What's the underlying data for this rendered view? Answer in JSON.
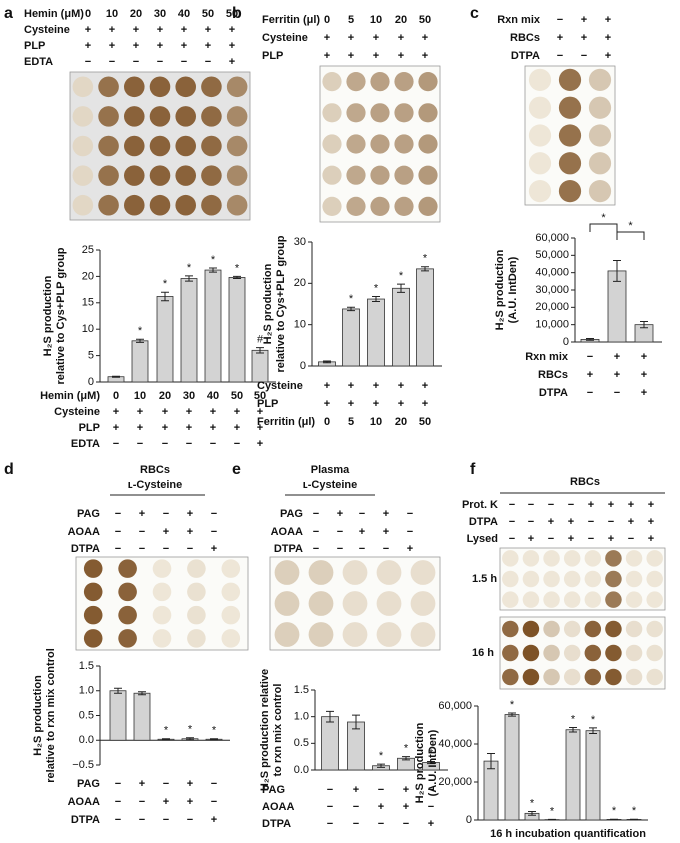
{
  "chart_data": [
    {
      "panel": "a",
      "type": "bar",
      "color": "#d3d3d3",
      "y_label": [
        "H₂S production",
        "relative to Cys+PLP group"
      ],
      "conditions": [
        {
          "label": "Hemin (μM)",
          "values": [
            "0",
            "10",
            "20",
            "30",
            "40",
            "50",
            "50"
          ]
        },
        {
          "label": "Cysteine",
          "values": [
            "+",
            "+",
            "+",
            "+",
            "+",
            "+",
            "+"
          ]
        },
        {
          "label": "PLP",
          "values": [
            "+",
            "+",
            "+",
            "+",
            "+",
            "+",
            "+"
          ]
        },
        {
          "label": "EDTA",
          "values": [
            "−",
            "−",
            "−",
            "−",
            "−",
            "−",
            "+"
          ]
        }
      ],
      "values": [
        1.0,
        7.8,
        16.2,
        19.6,
        21.2,
        19.8,
        6.0
      ],
      "errors": [
        0.1,
        0.3,
        0.8,
        0.5,
        0.4,
        0.2,
        0.5
      ],
      "annotations": [
        null,
        "*",
        "*",
        "*",
        "*",
        "*",
        "#"
      ],
      "ylim": [
        0,
        25
      ],
      "yticks": [
        0,
        5,
        10,
        15,
        20,
        25
      ]
    },
    {
      "panel": "b",
      "type": "bar",
      "color": "#d3d3d3",
      "y_label": [
        "H₂S production",
        "relative to Cys+PLP group"
      ],
      "conditions": [
        {
          "label": "Ferritin (μl)",
          "values": [
            "0",
            "5",
            "10",
            "20",
            "50"
          ]
        },
        {
          "label": "Cysteine",
          "values": [
            "+",
            "+",
            "+",
            "+",
            "+"
          ]
        },
        {
          "label": "PLP",
          "values": [
            "+",
            "+",
            "+",
            "+",
            "+"
          ]
        }
      ],
      "values": [
        1.0,
        13.8,
        16.2,
        18.8,
        23.5
      ],
      "errors": [
        0.2,
        0.4,
        0.6,
        1.0,
        0.5
      ],
      "annotations": [
        null,
        "*",
        "*",
        "*",
        "*"
      ],
      "ylim": [
        0,
        30
      ],
      "yticks": [
        0,
        10,
        20,
        30
      ]
    },
    {
      "panel": "c",
      "type": "bar",
      "color": "#d3d3d3",
      "y_label": [
        "H₂S production",
        "(A.U. IntDen)"
      ],
      "conditions": [
        {
          "label": "Rxn mix",
          "values": [
            "−",
            "+",
            "+"
          ]
        },
        {
          "label": "RBCs",
          "values": [
            "+",
            "+",
            "+"
          ]
        },
        {
          "label": "DTPA",
          "values": [
            "−",
            "−",
            "+"
          ]
        }
      ],
      "values": [
        1500,
        41000,
        10000
      ],
      "errors": [
        500,
        6000,
        1800
      ],
      "significance": [
        "*",
        "*"
      ],
      "ylim": [
        0,
        60000
      ],
      "yticks": [
        0,
        {
          "value": 10000,
          "label": "10,000"
        },
        {
          "value": 20000,
          "label": "20,000"
        },
        {
          "value": 30000,
          "label": "30,000"
        },
        {
          "value": 40000,
          "label": "40,000"
        },
        {
          "value": 50000,
          "label": "50,000"
        },
        {
          "value": 60000,
          "label": "60,000"
        }
      ]
    },
    {
      "panel": "d",
      "type": "bar",
      "color": "#d3d3d3",
      "title": "RBCs",
      "subtitle": "ʟ-Cysteine",
      "y_label": [
        "H₂S production",
        "relative to rxn mix control"
      ],
      "conditions": [
        {
          "label": "PAG",
          "values": [
            "−",
            "+",
            "−",
            "+",
            "−"
          ]
        },
        {
          "label": "AOAA",
          "values": [
            "−",
            "−",
            "+",
            "+",
            "−"
          ]
        },
        {
          "label": "DTPA",
          "values": [
            "−",
            "−",
            "−",
            "−",
            "+"
          ]
        }
      ],
      "values": [
        1.0,
        0.95,
        0.02,
        0.03,
        0.02
      ],
      "errors": [
        0.05,
        0.03,
        0.01,
        0.02,
        0.01
      ],
      "annotations": [
        null,
        null,
        "*",
        "*",
        "*"
      ],
      "ylim": [
        -0.5,
        1.5
      ],
      "yticks": [
        {
          "value": -0.5,
          "label": "−0.5"
        },
        {
          "value": 0,
          "label": "0.0"
        },
        0.5,
        {
          "value": 1,
          "label": "1.0"
        },
        1.5
      ]
    },
    {
      "panel": "e",
      "type": "bar",
      "color": "#d3d3d3",
      "title": "Plasma",
      "subtitle": "ʟ-Cysteine",
      "y_label": [
        "H₂S production relative",
        "to rxn mix control"
      ],
      "conditions": [
        {
          "label": "PAG",
          "values": [
            "−",
            "+",
            "−",
            "+",
            "−"
          ]
        },
        {
          "label": "AOAA",
          "values": [
            "−",
            "−",
            "+",
            "+",
            "−"
          ]
        },
        {
          "label": "DTPA",
          "values": [
            "−",
            "−",
            "−",
            "−",
            "+"
          ]
        }
      ],
      "values": [
        1.0,
        0.9,
        0.08,
        0.22,
        0.14
      ],
      "errors": [
        0.1,
        0.13,
        0.03,
        0.03,
        0.02
      ],
      "annotations": [
        null,
        null,
        "*",
        "*",
        "*"
      ],
      "ylim": [
        0,
        1.5
      ],
      "yticks": [
        {
          "value": 0,
          "label": "0.0"
        },
        0.5,
        {
          "value": 1,
          "label": "1.0"
        },
        1.5
      ]
    },
    {
      "panel": "f",
      "type": "bar",
      "color": "#d3d3d3",
      "title": "RBCs",
      "y_label": [
        "H₂S production",
        "(A.U. IntDen)"
      ],
      "x_label": "16 h incubation quantification",
      "blot_labels": [
        "1.5 h",
        "16 h"
      ],
      "conditions": [
        {
          "label": "Prot. K",
          "values": [
            "−",
            "−",
            "−",
            "−",
            "+",
            "+",
            "+",
            "+"
          ]
        },
        {
          "label": "DTPA",
          "values": [
            "−",
            "−",
            "+",
            "+",
            "−",
            "−",
            "+",
            "+"
          ]
        },
        {
          "label": "Lysed",
          "values": [
            "−",
            "+",
            "−",
            "+",
            "−",
            "+",
            "−",
            "+"
          ]
        }
      ],
      "values": [
        31000,
        55500,
        3500,
        200,
        47500,
        47000,
        300,
        300
      ],
      "errors": [
        4000,
        800,
        1000,
        100,
        1200,
        1500,
        100,
        100
      ],
      "annotations": [
        null,
        "*",
        "*",
        "*",
        "*",
        "*",
        "*",
        "*"
      ],
      "ylim": [
        0,
        60000
      ],
      "yticks": [
        0,
        {
          "value": 20000,
          "label": "20,000"
        },
        {
          "value": 40000,
          "label": "40,000"
        },
        {
          "value": 60000,
          "label": "60,000"
        }
      ]
    }
  ]
}
